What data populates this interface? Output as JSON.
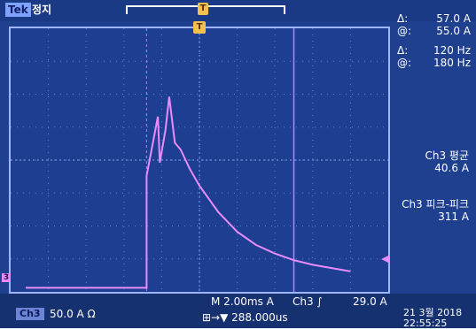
{
  "header": {
    "brand": "Tek",
    "status": "정지",
    "trigger_marker_top": "T",
    "trigger_marker_screen": "T"
  },
  "cursors": {
    "row1_symbol": "Δ:",
    "row1_value": "57.0 A",
    "row2_symbol": "@:",
    "row2_value": "55.0 A",
    "row3_symbol": "Δ:",
    "row3_value": "120 Hz",
    "row4_symbol": "@:",
    "row4_value": "180 Hz"
  },
  "measurements": {
    "mean_label": "Ch3 평균",
    "mean_value": "40.6 A",
    "pk2pk_label": "Ch3 피크-피크",
    "pk2pk_value": "311 A"
  },
  "bottom": {
    "channel_badge": "Ch3",
    "channel_scale": "50.0 A Ω",
    "timebase": "M 2.00ms  A",
    "trigger": "Ch3 ∫",
    "trigger_level": "29.0 A",
    "position": "⊞→▼ 288.000us",
    "date": "21 3월 2018",
    "time": "22:55:25"
  },
  "markers": {
    "channel": "3"
  },
  "colors": {
    "screen": "#1e3e91",
    "grid": "#9fb6ff",
    "trace": "#e88cff",
    "cursor": "#c37cff"
  },
  "chart_data": {
    "type": "line",
    "xlabel": "",
    "ylabel": "",
    "x_unit": "ms",
    "y_unit": "A",
    "x_per_div": 2.0,
    "y_per_div": 50.0,
    "x": [
      -9.2,
      -3.0,
      -2.8,
      -2.8,
      -2.2,
      -2.1,
      -1.8,
      -1.6,
      -1.3,
      -1.0,
      -0.5,
      0.0,
      0.5,
      1.0,
      1.5,
      2.0,
      3.0,
      4.0,
      5.0,
      6.0,
      7.0,
      8.0
    ],
    "series": [
      {
        "values": [
          -10,
          -10,
          -10,
          160,
          250,
          180,
          230,
          280,
          210,
          200,
          170,
          145,
          125,
          105,
          90,
          75,
          55,
          42,
          32,
          25,
          20,
          15
        ]
      }
    ]
  }
}
